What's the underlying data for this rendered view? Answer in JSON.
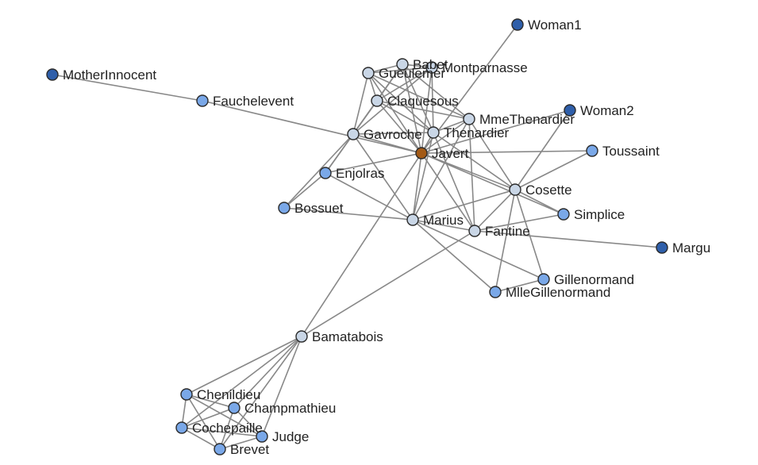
{
  "graph": {
    "palette": {
      "light": "#c9d6e6",
      "medium": "#7aa8e8",
      "dark": "#2f5faa",
      "focus": "#a35a16"
    },
    "nodes": [
      {
        "id": "Woman1",
        "label": "Woman1",
        "group": "dark"
      },
      {
        "id": "Babet",
        "label": "Babet",
        "group": "light"
      },
      {
        "id": "Montparnasse",
        "label": "Montparnasse",
        "group": "light"
      },
      {
        "id": "Gueulemer",
        "label": "Gueulemer",
        "group": "light"
      },
      {
        "id": "MotherInnocent",
        "label": "MotherInnocent",
        "group": "dark"
      },
      {
        "id": "Fauchelevent",
        "label": "Fauchelevent",
        "group": "medium"
      },
      {
        "id": "Claquesous",
        "label": "Claquesous",
        "group": "light"
      },
      {
        "id": "MmeThenardier",
        "label": "MmeThenardier",
        "group": "light"
      },
      {
        "id": "Woman2",
        "label": "Woman2",
        "group": "dark"
      },
      {
        "id": "Thenardier",
        "label": "Thenardier",
        "group": "light"
      },
      {
        "id": "Gavroche",
        "label": "Gavroche",
        "group": "light"
      },
      {
        "id": "Javert",
        "label": "Javert",
        "group": "focus"
      },
      {
        "id": "Toussaint",
        "label": "Toussaint",
        "group": "medium"
      },
      {
        "id": "Enjolras",
        "label": "Enjolras",
        "group": "medium"
      },
      {
        "id": "Cosette",
        "label": "Cosette",
        "group": "light"
      },
      {
        "id": "Bossuet",
        "label": "Bossuet",
        "group": "medium"
      },
      {
        "id": "Simplice",
        "label": "Simplice",
        "group": "medium"
      },
      {
        "id": "Marius",
        "label": "Marius",
        "group": "light"
      },
      {
        "id": "Fantine",
        "label": "Fantine",
        "group": "light"
      },
      {
        "id": "Margu",
        "label": "Margu",
        "group": "dark"
      },
      {
        "id": "Gillenormand",
        "label": "Gillenormand",
        "group": "medium"
      },
      {
        "id": "MlleGillenormand",
        "label": "MlleGillenormand",
        "group": "medium"
      },
      {
        "id": "Bamatabois",
        "label": "Bamatabois",
        "group": "light"
      },
      {
        "id": "Chenildieu",
        "label": "Chenildieu",
        "group": "medium"
      },
      {
        "id": "Champmathieu",
        "label": "Champmathieu",
        "group": "medium"
      },
      {
        "id": "Cochepaille",
        "label": "Cochepaille",
        "group": "medium"
      },
      {
        "id": "Judge",
        "label": "Judge",
        "group": "medium"
      },
      {
        "id": "Brevet",
        "label": "Brevet",
        "group": "medium"
      }
    ],
    "edges": [
      [
        "Javert",
        "Woman1"
      ],
      [
        "Javert",
        "Babet"
      ],
      [
        "Javert",
        "Montparnasse"
      ],
      [
        "Javert",
        "Gueulemer"
      ],
      [
        "Javert",
        "Claquesous"
      ],
      [
        "Javert",
        "Thenardier"
      ],
      [
        "Javert",
        "MmeThenardier"
      ],
      [
        "Javert",
        "Gavroche"
      ],
      [
        "Javert",
        "Enjolras"
      ],
      [
        "Javert",
        "Marius"
      ],
      [
        "Javert",
        "Cosette"
      ],
      [
        "Javert",
        "Fantine"
      ],
      [
        "Javert",
        "Toussaint"
      ],
      [
        "Javert",
        "Simplice"
      ],
      [
        "Javert",
        "Bamatabois"
      ],
      [
        "Javert",
        "Fauchelevent"
      ],
      [
        "Javert",
        "Woman2"
      ],
      [
        "MotherInnocent",
        "Fauchelevent"
      ],
      [
        "Gueulemer",
        "Babet"
      ],
      [
        "Gueulemer",
        "Montparnasse"
      ],
      [
        "Gueulemer",
        "Claquesous"
      ],
      [
        "Gueulemer",
        "Thenardier"
      ],
      [
        "Gueulemer",
        "Gavroche"
      ],
      [
        "Gueulemer",
        "MmeThenardier"
      ],
      [
        "Babet",
        "Montparnasse"
      ],
      [
        "Babet",
        "Claquesous"
      ],
      [
        "Babet",
        "Thenardier"
      ],
      [
        "Babet",
        "Gavroche"
      ],
      [
        "Babet",
        "MmeThenardier"
      ],
      [
        "Montparnasse",
        "Claquesous"
      ],
      [
        "Montparnasse",
        "Thenardier"
      ],
      [
        "Montparnasse",
        "Gavroche"
      ],
      [
        "Claquesous",
        "Thenardier"
      ],
      [
        "Claquesous",
        "MmeThenardier"
      ],
      [
        "Claquesous",
        "Gavroche"
      ],
      [
        "Claquesous",
        "Enjolras"
      ],
      [
        "Thenardier",
        "MmeThenardier"
      ],
      [
        "Thenardier",
        "Cosette"
      ],
      [
        "Thenardier",
        "Marius"
      ],
      [
        "Thenardier",
        "Gavroche"
      ],
      [
        "Thenardier",
        "Fantine"
      ],
      [
        "MmeThenardier",
        "Cosette"
      ],
      [
        "MmeThenardier",
        "Fantine"
      ],
      [
        "MmeThenardier",
        "Marius"
      ],
      [
        "Gavroche",
        "Enjolras"
      ],
      [
        "Gavroche",
        "Bossuet"
      ],
      [
        "Gavroche",
        "Marius"
      ],
      [
        "Enjolras",
        "Bossuet"
      ],
      [
        "Enjolras",
        "Marius"
      ],
      [
        "Bossuet",
        "Marius"
      ],
      [
        "Marius",
        "Cosette"
      ],
      [
        "Marius",
        "Fantine"
      ],
      [
        "Marius",
        "MlleGillenormand"
      ],
      [
        "Marius",
        "Gillenormand"
      ],
      [
        "Cosette",
        "Woman2"
      ],
      [
        "Cosette",
        "Toussaint"
      ],
      [
        "Cosette",
        "Simplice"
      ],
      [
        "Cosette",
        "Gillenormand"
      ],
      [
        "Cosette",
        "MlleGillenormand"
      ],
      [
        "Cosette",
        "Fantine"
      ],
      [
        "Fantine",
        "Margu"
      ],
      [
        "Fantine",
        "Simplice"
      ],
      [
        "Fantine",
        "Bamatabois"
      ],
      [
        "Gillenormand",
        "MlleGillenormand"
      ],
      [
        "Bamatabois",
        "Chenildieu"
      ],
      [
        "Bamatabois",
        "Champmathieu"
      ],
      [
        "Bamatabois",
        "Cochepaille"
      ],
      [
        "Bamatabois",
        "Judge"
      ],
      [
        "Bamatabois",
        "Brevet"
      ],
      [
        "Chenildieu",
        "Champmathieu"
      ],
      [
        "Chenildieu",
        "Cochepaille"
      ],
      [
        "Chenildieu",
        "Judge"
      ],
      [
        "Chenildieu",
        "Brevet"
      ],
      [
        "Champmathieu",
        "Cochepaille"
      ],
      [
        "Champmathieu",
        "Judge"
      ],
      [
        "Champmathieu",
        "Brevet"
      ],
      [
        "Cochepaille",
        "Judge"
      ],
      [
        "Cochepaille",
        "Brevet"
      ],
      [
        "Judge",
        "Brevet"
      ]
    ]
  }
}
